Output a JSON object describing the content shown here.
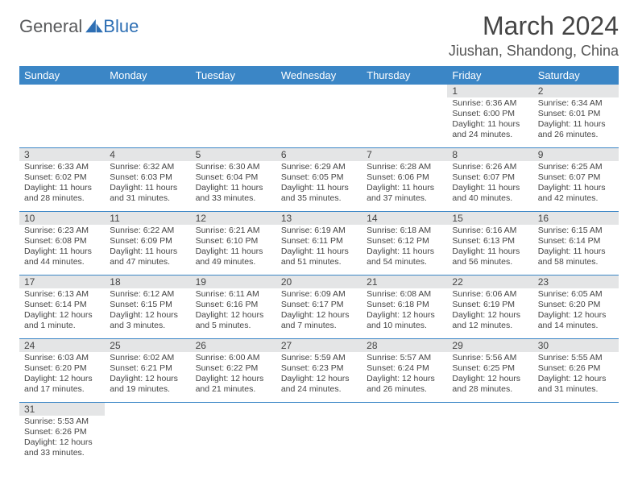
{
  "logo": {
    "text1": "General",
    "text2": "Blue"
  },
  "title": "March 2024",
  "location": "Jiushan, Shandong, China",
  "colors": {
    "header_bg": "#3b86c6",
    "header_fg": "#ffffff",
    "daynum_bg": "#e4e5e6",
    "text": "#444444",
    "rule": "#3b86c6"
  },
  "weekdays": [
    "Sunday",
    "Monday",
    "Tuesday",
    "Wednesday",
    "Thursday",
    "Friday",
    "Saturday"
  ],
  "weeks": [
    [
      null,
      null,
      null,
      null,
      null,
      {
        "n": "1",
        "sunrise": "Sunrise: 6:36 AM",
        "sunset": "Sunset: 6:00 PM",
        "daylight": "Daylight: 11 hours and 24 minutes."
      },
      {
        "n": "2",
        "sunrise": "Sunrise: 6:34 AM",
        "sunset": "Sunset: 6:01 PM",
        "daylight": "Daylight: 11 hours and 26 minutes."
      }
    ],
    [
      {
        "n": "3",
        "sunrise": "Sunrise: 6:33 AM",
        "sunset": "Sunset: 6:02 PM",
        "daylight": "Daylight: 11 hours and 28 minutes."
      },
      {
        "n": "4",
        "sunrise": "Sunrise: 6:32 AM",
        "sunset": "Sunset: 6:03 PM",
        "daylight": "Daylight: 11 hours and 31 minutes."
      },
      {
        "n": "5",
        "sunrise": "Sunrise: 6:30 AM",
        "sunset": "Sunset: 6:04 PM",
        "daylight": "Daylight: 11 hours and 33 minutes."
      },
      {
        "n": "6",
        "sunrise": "Sunrise: 6:29 AM",
        "sunset": "Sunset: 6:05 PM",
        "daylight": "Daylight: 11 hours and 35 minutes."
      },
      {
        "n": "7",
        "sunrise": "Sunrise: 6:28 AM",
        "sunset": "Sunset: 6:06 PM",
        "daylight": "Daylight: 11 hours and 37 minutes."
      },
      {
        "n": "8",
        "sunrise": "Sunrise: 6:26 AM",
        "sunset": "Sunset: 6:07 PM",
        "daylight": "Daylight: 11 hours and 40 minutes."
      },
      {
        "n": "9",
        "sunrise": "Sunrise: 6:25 AM",
        "sunset": "Sunset: 6:07 PM",
        "daylight": "Daylight: 11 hours and 42 minutes."
      }
    ],
    [
      {
        "n": "10",
        "sunrise": "Sunrise: 6:23 AM",
        "sunset": "Sunset: 6:08 PM",
        "daylight": "Daylight: 11 hours and 44 minutes."
      },
      {
        "n": "11",
        "sunrise": "Sunrise: 6:22 AM",
        "sunset": "Sunset: 6:09 PM",
        "daylight": "Daylight: 11 hours and 47 minutes."
      },
      {
        "n": "12",
        "sunrise": "Sunrise: 6:21 AM",
        "sunset": "Sunset: 6:10 PM",
        "daylight": "Daylight: 11 hours and 49 minutes."
      },
      {
        "n": "13",
        "sunrise": "Sunrise: 6:19 AM",
        "sunset": "Sunset: 6:11 PM",
        "daylight": "Daylight: 11 hours and 51 minutes."
      },
      {
        "n": "14",
        "sunrise": "Sunrise: 6:18 AM",
        "sunset": "Sunset: 6:12 PM",
        "daylight": "Daylight: 11 hours and 54 minutes."
      },
      {
        "n": "15",
        "sunrise": "Sunrise: 6:16 AM",
        "sunset": "Sunset: 6:13 PM",
        "daylight": "Daylight: 11 hours and 56 minutes."
      },
      {
        "n": "16",
        "sunrise": "Sunrise: 6:15 AM",
        "sunset": "Sunset: 6:14 PM",
        "daylight": "Daylight: 11 hours and 58 minutes."
      }
    ],
    [
      {
        "n": "17",
        "sunrise": "Sunrise: 6:13 AM",
        "sunset": "Sunset: 6:14 PM",
        "daylight": "Daylight: 12 hours and 1 minute."
      },
      {
        "n": "18",
        "sunrise": "Sunrise: 6:12 AM",
        "sunset": "Sunset: 6:15 PM",
        "daylight": "Daylight: 12 hours and 3 minutes."
      },
      {
        "n": "19",
        "sunrise": "Sunrise: 6:11 AM",
        "sunset": "Sunset: 6:16 PM",
        "daylight": "Daylight: 12 hours and 5 minutes."
      },
      {
        "n": "20",
        "sunrise": "Sunrise: 6:09 AM",
        "sunset": "Sunset: 6:17 PM",
        "daylight": "Daylight: 12 hours and 7 minutes."
      },
      {
        "n": "21",
        "sunrise": "Sunrise: 6:08 AM",
        "sunset": "Sunset: 6:18 PM",
        "daylight": "Daylight: 12 hours and 10 minutes."
      },
      {
        "n": "22",
        "sunrise": "Sunrise: 6:06 AM",
        "sunset": "Sunset: 6:19 PM",
        "daylight": "Daylight: 12 hours and 12 minutes."
      },
      {
        "n": "23",
        "sunrise": "Sunrise: 6:05 AM",
        "sunset": "Sunset: 6:20 PM",
        "daylight": "Daylight: 12 hours and 14 minutes."
      }
    ],
    [
      {
        "n": "24",
        "sunrise": "Sunrise: 6:03 AM",
        "sunset": "Sunset: 6:20 PM",
        "daylight": "Daylight: 12 hours and 17 minutes."
      },
      {
        "n": "25",
        "sunrise": "Sunrise: 6:02 AM",
        "sunset": "Sunset: 6:21 PM",
        "daylight": "Daylight: 12 hours and 19 minutes."
      },
      {
        "n": "26",
        "sunrise": "Sunrise: 6:00 AM",
        "sunset": "Sunset: 6:22 PM",
        "daylight": "Daylight: 12 hours and 21 minutes."
      },
      {
        "n": "27",
        "sunrise": "Sunrise: 5:59 AM",
        "sunset": "Sunset: 6:23 PM",
        "daylight": "Daylight: 12 hours and 24 minutes."
      },
      {
        "n": "28",
        "sunrise": "Sunrise: 5:57 AM",
        "sunset": "Sunset: 6:24 PM",
        "daylight": "Daylight: 12 hours and 26 minutes."
      },
      {
        "n": "29",
        "sunrise": "Sunrise: 5:56 AM",
        "sunset": "Sunset: 6:25 PM",
        "daylight": "Daylight: 12 hours and 28 minutes."
      },
      {
        "n": "30",
        "sunrise": "Sunrise: 5:55 AM",
        "sunset": "Sunset: 6:26 PM",
        "daylight": "Daylight: 12 hours and 31 minutes."
      }
    ],
    [
      {
        "n": "31",
        "sunrise": "Sunrise: 5:53 AM",
        "sunset": "Sunset: 6:26 PM",
        "daylight": "Daylight: 12 hours and 33 minutes."
      },
      null,
      null,
      null,
      null,
      null,
      null
    ]
  ]
}
